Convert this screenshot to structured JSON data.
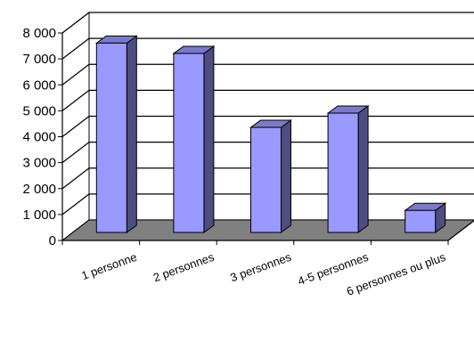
{
  "chart_data": {
    "type": "bar",
    "title": "",
    "xlabel": "",
    "ylabel": "",
    "categories": [
      "1 personne",
      "2 personnes",
      "3 personnes",
      "4-5 personnes",
      "6 personnes ou plus"
    ],
    "values": [
      7300,
      6900,
      4050,
      4600,
      850
    ],
    "ylim": [
      0,
      8000
    ],
    "yticks": [
      "0",
      "1 000",
      "2 000",
      "3 000",
      "4 000",
      "5 000",
      "6 000",
      "7 000",
      "8 000"
    ],
    "grid": true,
    "legend": "none",
    "three_d": true,
    "colors": {
      "bar_front": "#9999ff",
      "bar_side": "#4d4d80",
      "bar_top": "#7a7acc",
      "floor": "#808080",
      "wall": "#ffffff",
      "grid": "#000000"
    }
  }
}
